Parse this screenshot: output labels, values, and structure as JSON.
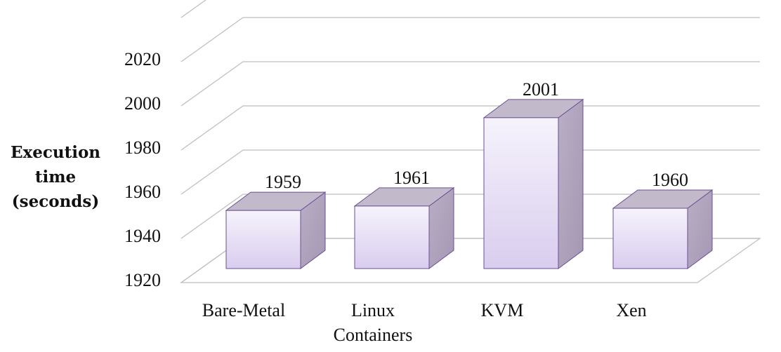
{
  "chart_data": {
    "type": "bar",
    "title": "",
    "xlabel": "",
    "ylabel": [
      "Execution",
      "time",
      "(seconds)"
    ],
    "categories": [
      [
        "Bare-Metal"
      ],
      [
        "Linux",
        "Containers"
      ],
      [
        "KVM"
      ],
      [
        "Xen"
      ]
    ],
    "values": [
      1959,
      1961,
      2001,
      1960
    ],
    "ylim": [
      1920,
      2040
    ],
    "yticks": [
      1920,
      1940,
      1960,
      1980,
      2000,
      2020
    ],
    "grid": true,
    "three_d": true,
    "colors": {
      "front_top": "#f6f3fc",
      "front_bottom": "#d9cdee",
      "side": "#a497b2",
      "top": "#c2bacb",
      "edge": "#6b4f93",
      "grid": "#bdbdbd"
    }
  }
}
